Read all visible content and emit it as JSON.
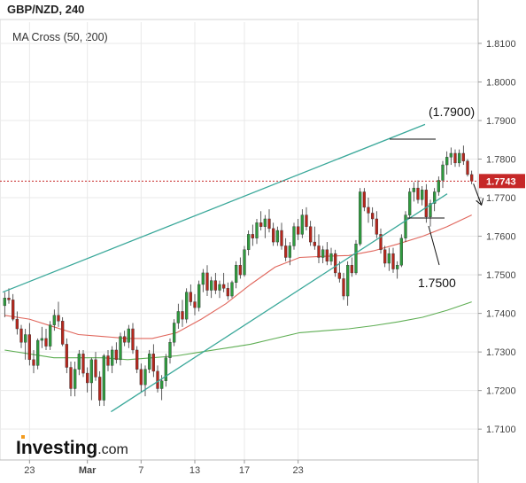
{
  "header": {
    "title": "GBP/NZD, 240",
    "indicator": "MA Cross (50, 200)"
  },
  "logo": {
    "main": "Investing",
    "sub": ".com"
  },
  "colors": {
    "up": "#2e9b3e",
    "down": "#b7271d",
    "wick": "#333333",
    "channel": "#3aa89a",
    "ma_fast": "#e0665c",
    "ma_slow": "#5fae54",
    "price_line": "#c62828",
    "price_tag_bg": "#c62828",
    "grid": "#e9e9e9"
  },
  "chart_data": {
    "type": "candlestick",
    "symbol": "GBP/NZD",
    "timeframe": "240",
    "ylim": [
      1.702,
      1.8155
    ],
    "y_ticks": [
      "1.8100",
      "1.8000",
      "1.7900",
      "1.7800",
      "1.7700",
      "1.7600",
      "1.7500",
      "1.7400",
      "1.7300",
      "1.7200",
      "1.7100"
    ],
    "x_ticks": [
      "23",
      "Mar",
      "7",
      "13",
      "17",
      "23"
    ],
    "current_price": "1.7743",
    "candles": [
      [
        1.742,
        1.7455,
        1.739,
        1.744
      ],
      [
        1.744,
        1.7465,
        1.7425,
        1.7435
      ],
      [
        1.7435,
        1.745,
        1.738,
        1.7385
      ],
      [
        1.7385,
        1.7405,
        1.7345,
        1.736
      ],
      [
        1.736,
        1.737,
        1.731,
        1.7325
      ],
      [
        1.7325,
        1.736,
        1.728,
        1.7345
      ],
      [
        1.7345,
        1.7375,
        1.7265,
        1.728
      ],
      [
        1.728,
        1.7305,
        1.7245,
        1.7265
      ],
      [
        1.7265,
        1.7335,
        1.7255,
        1.733
      ],
      [
        1.733,
        1.7365,
        1.731,
        1.7335
      ],
      [
        1.7335,
        1.736,
        1.7305,
        1.7315
      ],
      [
        1.7315,
        1.738,
        1.7305,
        1.737
      ],
      [
        1.737,
        1.741,
        1.7355,
        1.7395
      ],
      [
        1.7395,
        1.743,
        1.7365,
        1.738
      ],
      [
        1.738,
        1.739,
        1.7315,
        1.732
      ],
      [
        1.732,
        1.7335,
        1.7245,
        1.726
      ],
      [
        1.726,
        1.7275,
        1.7185,
        1.7205
      ],
      [
        1.7205,
        1.7275,
        1.7185,
        1.7255
      ],
      [
        1.7255,
        1.7305,
        1.724,
        1.7295
      ],
      [
        1.7295,
        1.7305,
        1.7235,
        1.7245
      ],
      [
        1.7245,
        1.726,
        1.7195,
        1.722
      ],
      [
        1.722,
        1.7285,
        1.7175,
        1.728
      ],
      [
        1.728,
        1.73,
        1.7225,
        1.7235
      ],
      [
        1.7235,
        1.725,
        1.716,
        1.7175
      ],
      [
        1.7175,
        1.7295,
        1.716,
        1.729
      ],
      [
        1.729,
        1.7305,
        1.725,
        1.7265
      ],
      [
        1.7265,
        1.7315,
        1.7245,
        1.7305
      ],
      [
        1.7305,
        1.7325,
        1.727,
        1.728
      ],
      [
        1.728,
        1.735,
        1.7265,
        1.734
      ],
      [
        1.734,
        1.7355,
        1.7315,
        1.7325
      ],
      [
        1.7325,
        1.737,
        1.731,
        1.736
      ],
      [
        1.736,
        1.7375,
        1.7295,
        1.7305
      ],
      [
        1.7305,
        1.7315,
        1.7245,
        1.7255
      ],
      [
        1.7255,
        1.727,
        1.7195,
        1.7215
      ],
      [
        1.7215,
        1.7265,
        1.7185,
        1.7255
      ],
      [
        1.7255,
        1.7305,
        1.7245,
        1.7295
      ],
      [
        1.7295,
        1.732,
        1.7235,
        1.725
      ],
      [
        1.725,
        1.7265,
        1.7195,
        1.7205
      ],
      [
        1.7205,
        1.724,
        1.7175,
        1.7225
      ],
      [
        1.7225,
        1.7295,
        1.721,
        1.7285
      ],
      [
        1.7285,
        1.7335,
        1.727,
        1.7325
      ],
      [
        1.7325,
        1.7385,
        1.7315,
        1.7375
      ],
      [
        1.7375,
        1.7425,
        1.736,
        1.7405
      ],
      [
        1.7405,
        1.7435,
        1.7365,
        1.7385
      ],
      [
        1.7385,
        1.7465,
        1.7375,
        1.7455
      ],
      [
        1.7455,
        1.7475,
        1.742,
        1.743
      ],
      [
        1.743,
        1.745,
        1.7395,
        1.7415
      ],
      [
        1.7415,
        1.7485,
        1.7405,
        1.7475
      ],
      [
        1.7475,
        1.7515,
        1.7455,
        1.7505
      ],
      [
        1.7505,
        1.7525,
        1.7445,
        1.746
      ],
      [
        1.746,
        1.7495,
        1.744,
        1.7485
      ],
      [
        1.7485,
        1.7505,
        1.745,
        1.746
      ],
      [
        1.746,
        1.7485,
        1.744,
        1.7475
      ],
      [
        1.7475,
        1.7505,
        1.7455,
        1.7465
      ],
      [
        1.7465,
        1.748,
        1.7435,
        1.7445
      ],
      [
        1.7445,
        1.7485,
        1.744,
        1.748
      ],
      [
        1.748,
        1.7535,
        1.7465,
        1.7525
      ],
      [
        1.7525,
        1.7545,
        1.749,
        1.75
      ],
      [
        1.75,
        1.7575,
        1.7495,
        1.7565
      ],
      [
        1.7565,
        1.7615,
        1.755,
        1.7605
      ],
      [
        1.7605,
        1.763,
        1.7575,
        1.7595
      ],
      [
        1.7595,
        1.7645,
        1.758,
        1.7635
      ],
      [
        1.7635,
        1.7665,
        1.7615,
        1.7625
      ],
      [
        1.7625,
        1.7655,
        1.7595,
        1.7645
      ],
      [
        1.7645,
        1.767,
        1.761,
        1.762
      ],
      [
        1.762,
        1.7635,
        1.7575,
        1.7585
      ],
      [
        1.7585,
        1.7625,
        1.7575,
        1.7615
      ],
      [
        1.7615,
        1.7635,
        1.7565,
        1.7575
      ],
      [
        1.7575,
        1.7595,
        1.7535,
        1.7545
      ],
      [
        1.7545,
        1.7585,
        1.7525,
        1.7575
      ],
      [
        1.7575,
        1.7635,
        1.7565,
        1.7625
      ],
      [
        1.7625,
        1.7645,
        1.759,
        1.7605
      ],
      [
        1.7605,
        1.767,
        1.7595,
        1.7655
      ],
      [
        1.7655,
        1.7675,
        1.7615,
        1.7625
      ],
      [
        1.7625,
        1.764,
        1.7575,
        1.7585
      ],
      [
        1.7585,
        1.7625,
        1.7565,
        1.7575
      ],
      [
        1.7575,
        1.7605,
        1.753,
        1.7545
      ],
      [
        1.7545,
        1.7575,
        1.753,
        1.7565
      ],
      [
        1.7565,
        1.7585,
        1.7525,
        1.7535
      ],
      [
        1.7535,
        1.757,
        1.7525,
        1.7555
      ],
      [
        1.7555,
        1.7565,
        1.7495,
        1.7505
      ],
      [
        1.7505,
        1.7535,
        1.748,
        1.749
      ],
      [
        1.749,
        1.7505,
        1.7435,
        1.7445
      ],
      [
        1.7445,
        1.7535,
        1.742,
        1.7525
      ],
      [
        1.7525,
        1.7545,
        1.7495,
        1.7505
      ],
      [
        1.7505,
        1.759,
        1.75,
        1.758
      ],
      [
        1.758,
        1.7725,
        1.7575,
        1.7715
      ],
      [
        1.7715,
        1.7725,
        1.7665,
        1.7675
      ],
      [
        1.7675,
        1.77,
        1.7635,
        1.766
      ],
      [
        1.766,
        1.7675,
        1.7625,
        1.7645
      ],
      [
        1.7645,
        1.7665,
        1.7595,
        1.7605
      ],
      [
        1.7605,
        1.762,
        1.7555,
        1.7565
      ],
      [
        1.7565,
        1.7575,
        1.752,
        1.753
      ],
      [
        1.753,
        1.757,
        1.751,
        1.7555
      ],
      [
        1.7555,
        1.757,
        1.7505,
        1.7515
      ],
      [
        1.7515,
        1.7535,
        1.749,
        1.7525
      ],
      [
        1.7525,
        1.7605,
        1.752,
        1.7595
      ],
      [
        1.7595,
        1.7665,
        1.7585,
        1.7655
      ],
      [
        1.7655,
        1.7725,
        1.7645,
        1.7715
      ],
      [
        1.7715,
        1.774,
        1.769,
        1.7725
      ],
      [
        1.7725,
        1.7745,
        1.7685,
        1.7695
      ],
      [
        1.7695,
        1.773,
        1.768,
        1.772
      ],
      [
        1.772,
        1.7735,
        1.7635,
        1.765
      ],
      [
        1.765,
        1.7695,
        1.7625,
        1.7685
      ],
      [
        1.7685,
        1.7725,
        1.7665,
        1.7715
      ],
      [
        1.7715,
        1.7755,
        1.7705,
        1.7745
      ],
      [
        1.7745,
        1.7795,
        1.7725,
        1.7785
      ],
      [
        1.7785,
        1.782,
        1.776,
        1.7805
      ],
      [
        1.7805,
        1.783,
        1.7785,
        1.7815
      ],
      [
        1.7815,
        1.7825,
        1.778,
        1.779
      ],
      [
        1.779,
        1.7825,
        1.778,
        1.7815
      ],
      [
        1.7815,
        1.7835,
        1.7785,
        1.7795
      ],
      [
        1.7795,
        1.78,
        1.7755,
        1.776
      ],
      [
        1.776,
        1.777,
        1.7735,
        1.7743
      ]
    ],
    "ma_fast": {
      "name": "MA 50",
      "points": [
        [
          0,
          1.7395
        ],
        [
          6,
          1.7385
        ],
        [
          12,
          1.7365
        ],
        [
          18,
          1.7345
        ],
        [
          24,
          1.734
        ],
        [
          30,
          1.7335
        ],
        [
          36,
          1.7335
        ],
        [
          42,
          1.735
        ],
        [
          48,
          1.7385
        ],
        [
          54,
          1.7425
        ],
        [
          60,
          1.7475
        ],
        [
          66,
          1.752
        ],
        [
          72,
          1.7545
        ],
        [
          78,
          1.7548
        ],
        [
          84,
          1.755
        ],
        [
          90,
          1.7562
        ],
        [
          96,
          1.758
        ],
        [
          102,
          1.76
        ],
        [
          108,
          1.7625
        ],
        [
          114,
          1.7655
        ]
      ]
    },
    "ma_slow": {
      "name": "MA 200",
      "points": [
        [
          0,
          1.7305
        ],
        [
          6,
          1.7295
        ],
        [
          12,
          1.7285
        ],
        [
          18,
          1.7285
        ],
        [
          24,
          1.7285
        ],
        [
          30,
          1.728
        ],
        [
          36,
          1.7285
        ],
        [
          42,
          1.729
        ],
        [
          48,
          1.73
        ],
        [
          54,
          1.731
        ],
        [
          60,
          1.732
        ],
        [
          66,
          1.7335
        ],
        [
          72,
          1.735
        ],
        [
          78,
          1.7355
        ],
        [
          84,
          1.736
        ],
        [
          90,
          1.7368
        ],
        [
          96,
          1.7378
        ],
        [
          102,
          1.739
        ],
        [
          108,
          1.7408
        ],
        [
          114,
          1.743
        ]
      ]
    },
    "channel": {
      "upper": [
        [
          1.7455,
          0
        ],
        [
          1.789,
          1.0
        ]
      ],
      "lower": [
        [
          1.7145,
          0.2
        ],
        [
          1.771,
          1.0
        ]
      ]
    },
    "annotations": [
      {
        "text": "(1.7900)"
      },
      {
        "text": "1.7500"
      }
    ]
  }
}
